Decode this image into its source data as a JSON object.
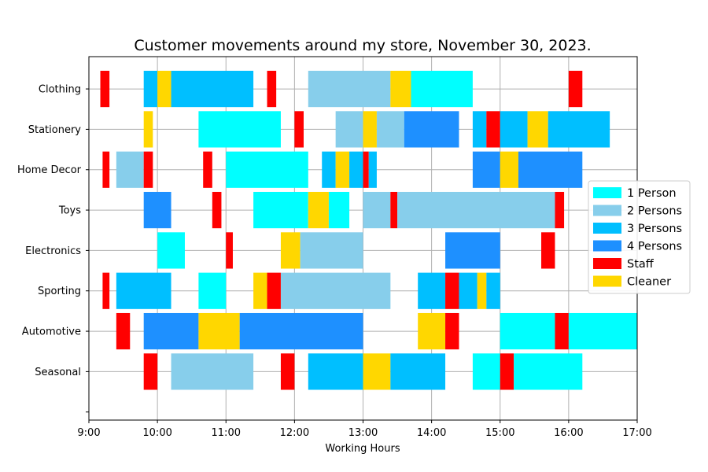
{
  "chart_data": {
    "type": "bar",
    "orientation": "horizontal-timeline",
    "title": "Customer movements around my store, November 30, 2023.",
    "xlabel": "Working Hours",
    "ylabel": "",
    "xlim": [
      "9:00",
      "17:00"
    ],
    "x_ticks": [
      "9:00",
      "10:00",
      "11:00",
      "12:00",
      "13:00",
      "14:00",
      "15:00",
      "16:00",
      "17:00"
    ],
    "categories": [
      "Clothing",
      "Stationery",
      "Home Decor",
      "Toys",
      "Electronics",
      "Sporting",
      "Automotive",
      "Seasonal"
    ],
    "grid": true,
    "legend_position": "right",
    "legend": [
      {
        "key": "p1",
        "label": "1 Person",
        "color": "#00FFFF"
      },
      {
        "key": "p2",
        "label": "2 Persons",
        "color": "#87CEEB"
      },
      {
        "key": "p3",
        "label": "3 Persons",
        "color": "#00BFFF"
      },
      {
        "key": "p4",
        "label": "4 Persons",
        "color": "#1E90FF"
      },
      {
        "key": "staff",
        "label": "Staff",
        "color": "#FF0000"
      },
      {
        "key": "cleaner",
        "label": "Cleaner",
        "color": "#FFD700"
      }
    ],
    "segments": {
      "Clothing": [
        {
          "start": "9:10",
          "end": "9:18",
          "type": "staff"
        },
        {
          "start": "9:48",
          "end": "10:00",
          "type": "p3"
        },
        {
          "start": "10:00",
          "end": "10:12",
          "type": "cleaner"
        },
        {
          "start": "10:12",
          "end": "11:24",
          "type": "p3"
        },
        {
          "start": "11:36",
          "end": "11:44",
          "type": "staff"
        },
        {
          "start": "12:12",
          "end": "13:24",
          "type": "p2"
        },
        {
          "start": "13:24",
          "end": "13:42",
          "type": "cleaner"
        },
        {
          "start": "13:42",
          "end": "14:36",
          "type": "p1"
        },
        {
          "start": "16:00",
          "end": "16:12",
          "type": "staff"
        }
      ],
      "Stationery": [
        {
          "start": "9:48",
          "end": "9:56",
          "type": "cleaner"
        },
        {
          "start": "10:36",
          "end": "11:48",
          "type": "p1"
        },
        {
          "start": "12:00",
          "end": "12:08",
          "type": "staff"
        },
        {
          "start": "12:36",
          "end": "13:00",
          "type": "p2"
        },
        {
          "start": "13:00",
          "end": "13:12",
          "type": "cleaner"
        },
        {
          "start": "13:12",
          "end": "13:36",
          "type": "p2"
        },
        {
          "start": "13:36",
          "end": "14:24",
          "type": "p4"
        },
        {
          "start": "14:36",
          "end": "14:48",
          "type": "p3"
        },
        {
          "start": "14:48",
          "end": "15:00",
          "type": "staff"
        },
        {
          "start": "15:00",
          "end": "15:24",
          "type": "p3"
        },
        {
          "start": "15:24",
          "end": "15:42",
          "type": "cleaner"
        },
        {
          "start": "15:42",
          "end": "16:36",
          "type": "p3"
        }
      ],
      "Home Decor": [
        {
          "start": "9:12",
          "end": "9:18",
          "type": "staff"
        },
        {
          "start": "9:24",
          "end": "9:48",
          "type": "p2"
        },
        {
          "start": "9:48",
          "end": "9:56",
          "type": "staff"
        },
        {
          "start": "10:40",
          "end": "10:48",
          "type": "staff"
        },
        {
          "start": "11:00",
          "end": "12:12",
          "type": "p1"
        },
        {
          "start": "12:24",
          "end": "12:36",
          "type": "p3"
        },
        {
          "start": "12:36",
          "end": "12:48",
          "type": "cleaner"
        },
        {
          "start": "12:48",
          "end": "13:00",
          "type": "p3"
        },
        {
          "start": "13:00",
          "end": "13:05",
          "type": "staff"
        },
        {
          "start": "13:05",
          "end": "13:12",
          "type": "p3"
        },
        {
          "start": "14:36",
          "end": "15:00",
          "type": "p4"
        },
        {
          "start": "15:00",
          "end": "15:16",
          "type": "cleaner"
        },
        {
          "start": "15:16",
          "end": "16:12",
          "type": "p4"
        }
      ],
      "Toys": [
        {
          "start": "9:48",
          "end": "10:12",
          "type": "p4"
        },
        {
          "start": "10:48",
          "end": "10:56",
          "type": "staff"
        },
        {
          "start": "11:24",
          "end": "12:12",
          "type": "p1"
        },
        {
          "start": "12:12",
          "end": "12:30",
          "type": "cleaner"
        },
        {
          "start": "12:30",
          "end": "12:48",
          "type": "p1"
        },
        {
          "start": "13:00",
          "end": "13:24",
          "type": "p2"
        },
        {
          "start": "13:24",
          "end": "13:30",
          "type": "staff"
        },
        {
          "start": "13:30",
          "end": "15:48",
          "type": "p2"
        },
        {
          "start": "15:48",
          "end": "15:56",
          "type": "staff"
        }
      ],
      "Electronics": [
        {
          "start": "10:00",
          "end": "10:24",
          "type": "p1"
        },
        {
          "start": "11:00",
          "end": "11:06",
          "type": "staff"
        },
        {
          "start": "11:48",
          "end": "12:05",
          "type": "cleaner"
        },
        {
          "start": "12:05",
          "end": "13:00",
          "type": "p2"
        },
        {
          "start": "14:12",
          "end": "15:00",
          "type": "p4"
        },
        {
          "start": "15:36",
          "end": "15:48",
          "type": "staff"
        }
      ],
      "Sporting": [
        {
          "start": "9:12",
          "end": "9:18",
          "type": "staff"
        },
        {
          "start": "9:24",
          "end": "10:12",
          "type": "p3"
        },
        {
          "start": "10:36",
          "end": "11:00",
          "type": "p1"
        },
        {
          "start": "11:24",
          "end": "11:36",
          "type": "cleaner"
        },
        {
          "start": "11:36",
          "end": "11:48",
          "type": "staff"
        },
        {
          "start": "11:48",
          "end": "13:24",
          "type": "p2"
        },
        {
          "start": "13:48",
          "end": "14:12",
          "type": "p3"
        },
        {
          "start": "14:12",
          "end": "14:24",
          "type": "staff"
        },
        {
          "start": "14:24",
          "end": "14:40",
          "type": "p3"
        },
        {
          "start": "14:40",
          "end": "14:48",
          "type": "cleaner"
        },
        {
          "start": "14:48",
          "end": "15:00",
          "type": "p3"
        }
      ],
      "Automotive": [
        {
          "start": "9:24",
          "end": "9:36",
          "type": "staff"
        },
        {
          "start": "9:48",
          "end": "10:36",
          "type": "p4"
        },
        {
          "start": "10:36",
          "end": "11:12",
          "type": "cleaner"
        },
        {
          "start": "11:12",
          "end": "13:00",
          "type": "p4"
        },
        {
          "start": "13:48",
          "end": "14:12",
          "type": "cleaner"
        },
        {
          "start": "14:12",
          "end": "14:24",
          "type": "staff"
        },
        {
          "start": "15:00",
          "end": "15:48",
          "type": "p1"
        },
        {
          "start": "15:48",
          "end": "16:00",
          "type": "staff"
        },
        {
          "start": "16:00",
          "end": "17:00",
          "type": "p1"
        }
      ],
      "Seasonal": [
        {
          "start": "9:48",
          "end": "10:00",
          "type": "staff"
        },
        {
          "start": "10:12",
          "end": "11:24",
          "type": "p2"
        },
        {
          "start": "11:48",
          "end": "12:00",
          "type": "staff"
        },
        {
          "start": "12:12",
          "end": "13:00",
          "type": "p3"
        },
        {
          "start": "13:00",
          "end": "13:24",
          "type": "cleaner"
        },
        {
          "start": "13:24",
          "end": "14:12",
          "type": "p3"
        },
        {
          "start": "14:36",
          "end": "15:00",
          "type": "p1"
        },
        {
          "start": "15:00",
          "end": "15:12",
          "type": "staff"
        },
        {
          "start": "15:12",
          "end": "16:12",
          "type": "p1"
        }
      ]
    }
  }
}
